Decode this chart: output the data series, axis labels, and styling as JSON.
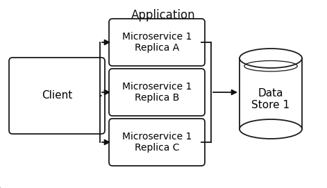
{
  "bg_color": "#ffffff",
  "outer_border_color": "#999999",
  "box_edge_color": "#1a1a1a",
  "box_face_color": "#ffffff",
  "arrow_color": "#111111",
  "app_label": "Application",
  "client_label": "Client",
  "replicas": [
    "Microservice 1\nReplica A",
    "Microservice 1\nReplica B",
    "Microservice 1\nReplica C"
  ],
  "datastore_label": "Data\nStore 1",
  "font_size_main": 10,
  "font_size_app": 12,
  "fig_width": 4.71,
  "fig_height": 2.71,
  "dpi": 100
}
